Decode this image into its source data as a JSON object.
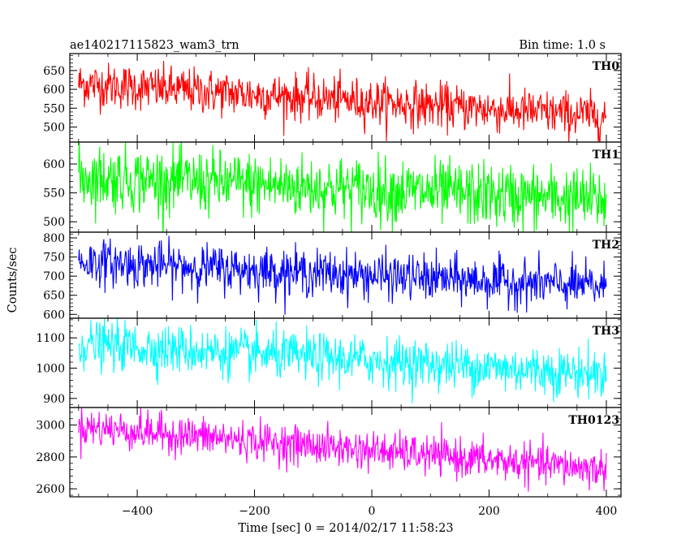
{
  "chart_data": {
    "type": "line",
    "title": "ae140217115823_wam3_trn",
    "subtitle": "Bin time: 1.0 s",
    "xlabel": "Time [sec] 0 = 2014/02/17 11:58:23",
    "ylabel": "Counts/sec",
    "xlim": [
      -515,
      425
    ],
    "x_ticks": [
      -400,
      -200,
      0,
      200,
      400
    ],
    "x_range": [
      -500,
      400
    ],
    "x_step": 1,
    "grid": false,
    "panels": [
      {
        "name": "TH0",
        "color": "#ff0000",
        "ylim": [
          460,
          695
        ],
        "y_ticks": [
          500,
          550,
          600,
          650
        ],
        "trend": [
          615,
          528
        ],
        "noise": 30
      },
      {
        "name": "TH1",
        "color": "#00ff00",
        "ylim": [
          482,
          638
        ],
        "y_ticks": [
          500,
          550,
          600
        ],
        "trend": [
          578,
          537
        ],
        "noise": 28
      },
      {
        "name": "TH2",
        "color": "#0000ff",
        "ylim": [
          590,
          815
        ],
        "y_ticks": [
          600,
          650,
          700,
          750,
          800
        ],
        "trend": [
          738,
          672
        ],
        "noise": 30
      },
      {
        "name": "TH3",
        "color": "#00ffff",
        "ylim": [
          870,
          1165
        ],
        "y_ticks": [
          900,
          1000,
          1100
        ],
        "trend": [
          1080,
          980
        ],
        "noise": 40
      },
      {
        "name": "TH0123",
        "color": "#ff00ff",
        "ylim": [
          2550,
          3110
        ],
        "y_ticks": [
          2600,
          2800,
          3000
        ],
        "trend": [
          2990,
          2720
        ],
        "noise": 60
      }
    ]
  }
}
